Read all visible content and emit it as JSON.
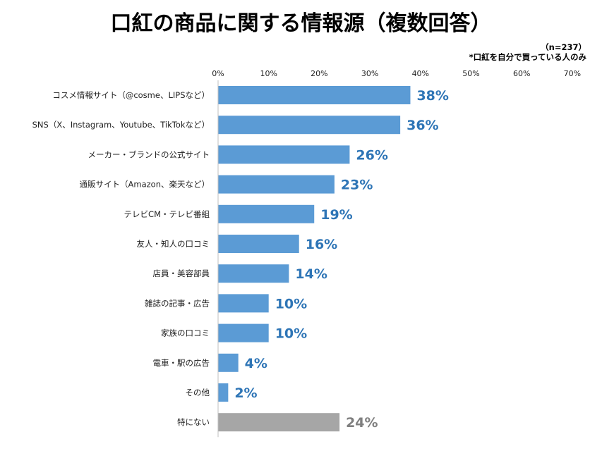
{
  "chart_data": {
    "type": "bar",
    "orientation": "horizontal",
    "title": "口紅の商品に関する情報源（複数回答）",
    "sample_note": "（n=237）",
    "footnote": "*口紅を自分で買っている人のみ",
    "x_ticks": [
      "0%",
      "10%",
      "20%",
      "30%",
      "40%",
      "50%",
      "60%",
      "70%"
    ],
    "xlim": [
      0,
      70
    ],
    "grid": false,
    "categories": [
      "コスメ情報サイト（@cosme、LIPSなど）",
      "SNS（X、Instagram、Youtube、TikTokなど）",
      "メーカー・ブランドの公式サイト",
      "通販サイト（Amazon、楽天など）",
      "テレビCM・テレビ番組",
      "友人・知人の口コミ",
      "店員・美容部員",
      "雑誌の記事・広告",
      "家族の口コミ",
      "電車・駅の広告",
      "その他",
      "特にない"
    ],
    "values": [
      38,
      36,
      26,
      23,
      19,
      16,
      14,
      10,
      10,
      4,
      2,
      24
    ],
    "value_labels": [
      "38%",
      "36%",
      "26%",
      "23%",
      "19%",
      "16%",
      "14%",
      "10%",
      "10%",
      "4%",
      "2%",
      "24%"
    ],
    "colors": {
      "bar": "#5b9bd5",
      "bar_none": "#a6a6a6",
      "label": "#2e75b6",
      "label_none": "#7f7f7f",
      "axis": "#bfbfbf"
    }
  }
}
